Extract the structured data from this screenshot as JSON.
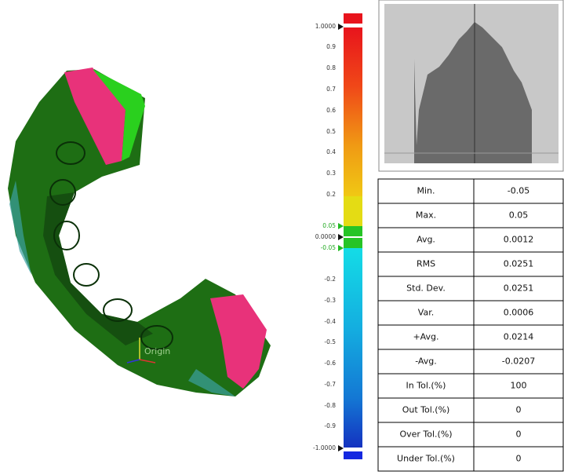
{
  "viewport": {
    "origin_label": "Origin"
  },
  "color_scale": {
    "labels": [
      "1.0000",
      "0.9",
      "0.8",
      "0.7",
      "0.6",
      "0.5",
      "0.4",
      "0.3",
      "0.2",
      "0.05",
      "0.0000",
      "-0.05",
      "-0.2",
      "-0.3",
      "-0.4",
      "-0.5",
      "-0.6",
      "-0.7",
      "-0.8",
      "-0.9",
      "-1.0000"
    ]
  },
  "stats_table": {
    "rows": [
      [
        "Min.",
        "-0.05"
      ],
      [
        "Max.",
        "0.05"
      ],
      [
        "Avg.",
        "0.0012"
      ],
      [
        "RMS",
        "0.0251"
      ],
      [
        "Std. Dev.",
        "0.0251"
      ],
      [
        "Var.",
        "0.0006"
      ],
      [
        "+Avg.",
        "0.0214"
      ],
      [
        "-Avg.",
        "-0.0207"
      ],
      [
        "In Tol.(%)",
        "100"
      ],
      [
        "Out Tol.(%)",
        "0"
      ],
      [
        "Over Tol.(%)",
        "0"
      ],
      [
        "Under Tol.(%)",
        "0"
      ]
    ]
  }
}
